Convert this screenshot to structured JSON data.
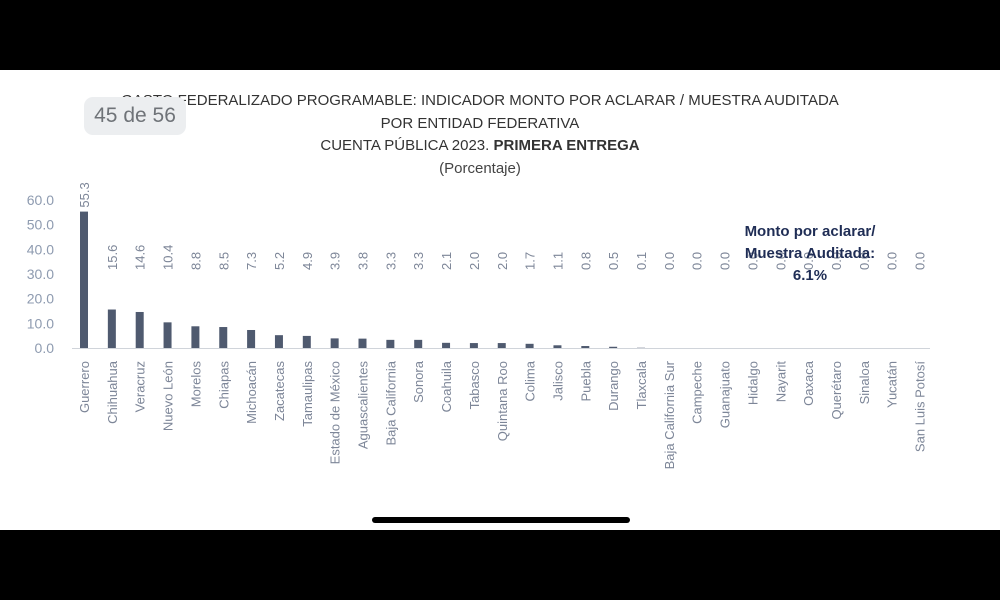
{
  "viewer": {
    "page_indicator": "45 de 56"
  },
  "chart_data": {
    "type": "bar",
    "title_lines": [
      "GASTO FEDERALIZADO PROGRAMABLE: INDICADOR MONTO POR ACLARAR / MUESTRA AUDITADA",
      "POR ENTIDAD FEDERATIVA"
    ],
    "title_line3_prefix": "CUENTA PÚBLICA 2023. ",
    "title_line3_emphasis": "PRIMERA ENTREGA",
    "subtitle": "(Porcentaje)",
    "annotation_lines": [
      "Monto por aclarar/",
      "Muestra Auditada:",
      "6.1%"
    ],
    "ylim": [
      0,
      60
    ],
    "y_ticks": [
      "0.0",
      "10.0",
      "20.0",
      "30.0",
      "40.0",
      "50.0",
      "60.0"
    ],
    "bar_color": "#4f5a6f",
    "categories": [
      "Guerrero",
      "Chihuahua",
      "Veracruz",
      "Nuevo León",
      "Morelos",
      "Chiapas",
      "Michoacán",
      "Zacatecas",
      "Tamaulipas",
      "Estado de México",
      "Aguascalientes",
      "Baja California",
      "Sonora",
      "Coahuila",
      "Tabasco",
      "Quintana Roo",
      "Colima",
      "Jalisco",
      "Puebla",
      "Durango",
      "Tlaxcala",
      "Baja California Sur",
      "Campeche",
      "Guanajuato",
      "Hidalgo",
      "Nayarit",
      "Oaxaca",
      "Querétaro",
      "Sinaloa",
      "Yucatán",
      "San Luis Potosí"
    ],
    "values": [
      55.3,
      15.6,
      14.6,
      10.4,
      8.8,
      8.5,
      7.3,
      5.2,
      4.9,
      3.9,
      3.8,
      3.3,
      3.3,
      2.1,
      2.0,
      2.0,
      1.7,
      1.1,
      0.8,
      0.5,
      0.1,
      0.0,
      0.0,
      0.0,
      0.0,
      0.0,
      0.0,
      0.0,
      0.0,
      0.0,
      0.0
    ],
    "value_labels": [
      "55.3",
      "15.6",
      "14.6",
      "10.4",
      "8.8",
      "8.5",
      "7.3",
      "5.2",
      "4.9",
      "3.9",
      "3.8",
      "3.3",
      "3.3",
      "2.1",
      "2.0",
      "2.0",
      "1.7",
      "1.1",
      "0.8",
      "0.5",
      "0.1",
      "0.0",
      "0.0",
      "0.0",
      "0.0",
      "0.0",
      "0.0",
      "0.0",
      "0.0",
      "0.0",
      "0.0"
    ]
  }
}
